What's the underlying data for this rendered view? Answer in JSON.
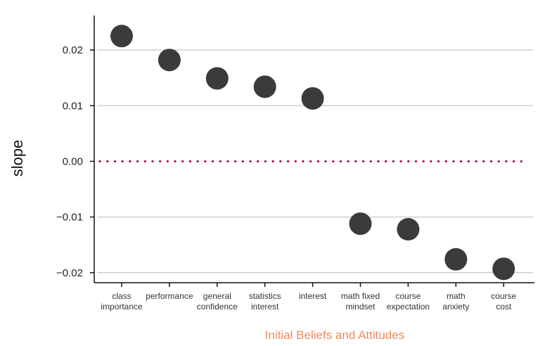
{
  "chart_data": {
    "type": "scatter",
    "title": "",
    "xlabel": "Initial Beliefs and Attitudes",
    "ylabel": "slope",
    "categories": [
      [
        "class",
        "importance"
      ],
      [
        "performance"
      ],
      [
        "general",
        "confidence"
      ],
      [
        "statistics",
        "interest"
      ],
      [
        "interest"
      ],
      [
        "math fixed",
        "mindset"
      ],
      [
        "course",
        "expectation"
      ],
      [
        "math",
        "anxiety"
      ],
      [
        "course",
        "cost"
      ]
    ],
    "values": [
      0.0225,
      0.0182,
      0.0149,
      0.0134,
      0.0113,
      -0.0112,
      -0.0122,
      -0.0176,
      -0.0193
    ],
    "ylim": [
      -0.0218,
      0.0262
    ],
    "yticks": [
      0.02,
      0.01,
      0.0,
      -0.01,
      -0.02
    ],
    "ytick_labels": [
      "0.02",
      "0.01",
      "0.00",
      "−0.01",
      "−0.02"
    ],
    "reference_line": 0.0,
    "grid": "horizontal",
    "colors": {
      "points": "#3a3c3c",
      "reference_line": "#b0103a",
      "grid": "#bbbbbb",
      "axis": "#111111",
      "xlabel": "#f08a5d"
    }
  }
}
